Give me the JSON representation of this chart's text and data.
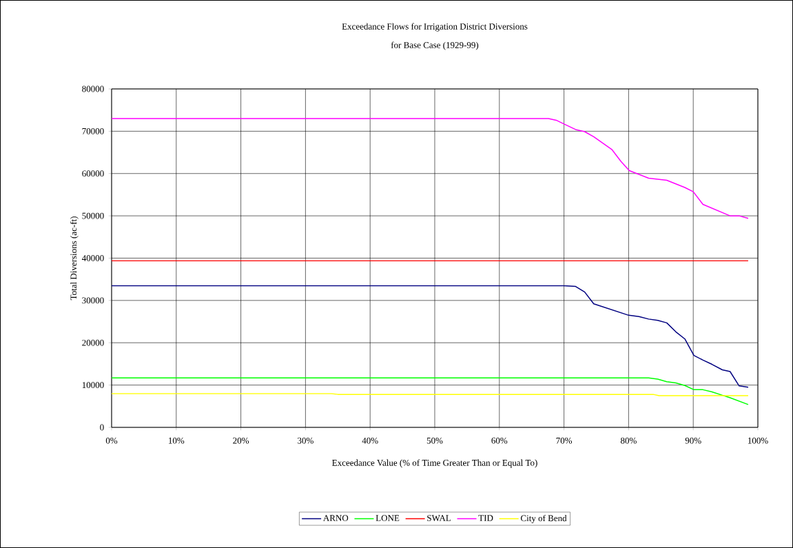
{
  "chart_data": {
    "type": "line",
    "title": "Exceedance Flows for Irrigation District Diversions",
    "subtitle": "for Base Case (1929-99)",
    "xlabel": "Exceedance Value (% of Time Greater Than or Equal To)",
    "ylabel": "Total Diversions (ac-ft)",
    "xlim": [
      0,
      100
    ],
    "ylim": [
      0,
      80000
    ],
    "xticks": [
      {
        "value": 0,
        "label": "0%"
      },
      {
        "value": 10,
        "label": "10%"
      },
      {
        "value": 20,
        "label": "20%"
      },
      {
        "value": 30,
        "label": "30%"
      },
      {
        "value": 40,
        "label": "40%"
      },
      {
        "value": 50,
        "label": "50%"
      },
      {
        "value": 60,
        "label": "60%"
      },
      {
        "value": 70,
        "label": "70%"
      },
      {
        "value": 80,
        "label": "80%"
      },
      {
        "value": 90,
        "label": "90%"
      },
      {
        "value": 100,
        "label": "100%"
      }
    ],
    "yticks": [
      0,
      10000,
      20000,
      30000,
      40000,
      50000,
      60000,
      70000,
      80000
    ],
    "grid": true,
    "legend": "bottom",
    "line_style": "solid",
    "series": [
      {
        "name": "ARNO",
        "color": "#000080",
        "x": [
          0,
          70,
          71.8,
          73.2,
          74.6,
          80,
          81.6,
          83.1,
          84.5,
          85.9,
          87.3,
          88.7,
          90.1,
          91.5,
          92.9,
          94.5,
          95.7,
          97.1,
          98.5
        ],
        "values": [
          33500,
          33500,
          33300,
          32000,
          29200,
          26500,
          26200,
          25600,
          25300,
          24700,
          22600,
          20900,
          17000,
          15900,
          14900,
          13600,
          13200,
          9800,
          9500
        ]
      },
      {
        "name": "LONE",
        "color": "#00ff00",
        "x": [
          0,
          83.1,
          84.5,
          85.9,
          87.3,
          88.7,
          90.1,
          91.5,
          92.9,
          94.5,
          95.7,
          98.5
        ],
        "values": [
          11700,
          11700,
          11400,
          10800,
          10500,
          9900,
          8900,
          8900,
          8400,
          7600,
          7000,
          5400
        ]
      },
      {
        "name": "SWAL",
        "color": "#ff0000",
        "x": [
          0,
          98.5
        ],
        "values": [
          39400,
          39400
        ]
      },
      {
        "name": "TID",
        "color": "#ff00ff",
        "x": [
          0,
          67.6,
          68.8,
          70,
          71.8,
          73.2,
          74.6,
          76,
          77.4,
          78.8,
          80.1,
          83.1,
          85.9,
          88.7,
          90,
          91.5,
          95.7,
          97.1,
          98.5
        ],
        "values": [
          73000,
          73000,
          72600,
          71700,
          70400,
          69900,
          68700,
          67200,
          65700,
          62900,
          60700,
          58900,
          58400,
          56700,
          55700,
          52700,
          50000,
          50000,
          49400
        ]
      },
      {
        "name": "City of Bend",
        "color": "#ffff00",
        "x": [
          0,
          34,
          35,
          83.8,
          84.7,
          98.5
        ],
        "values": [
          8000,
          8000,
          7800,
          7800,
          7500,
          7500
        ]
      }
    ]
  }
}
